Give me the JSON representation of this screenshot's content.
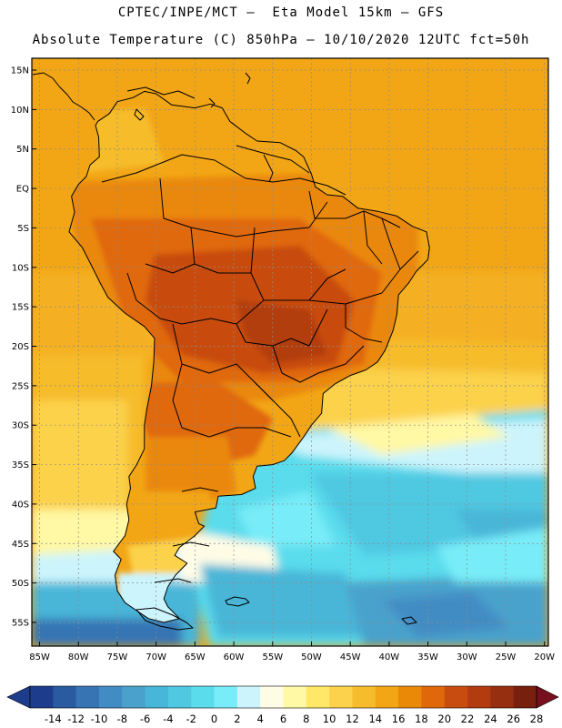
{
  "header": {
    "line1": "CPTEC/INPE/MCT –  Eta Model 15km – GFS",
    "line2": "Absolute Temperature (C) 850hPa – 10/10/2020 12UTC fct=50h"
  },
  "map": {
    "lon_range": [
      -86,
      -19.5
    ],
    "lat_range": [
      -58,
      16.5
    ],
    "lon_ticks": [
      {
        "value": -85,
        "label": "85W"
      },
      {
        "value": -80,
        "label": "80W"
      },
      {
        "value": -75,
        "label": "75W"
      },
      {
        "value": -70,
        "label": "70W"
      },
      {
        "value": -65,
        "label": "65W"
      },
      {
        "value": -60,
        "label": "60W"
      },
      {
        "value": -55,
        "label": "55W"
      },
      {
        "value": -50,
        "label": "50W"
      },
      {
        "value": -45,
        "label": "45W"
      },
      {
        "value": -40,
        "label": "40W"
      },
      {
        "value": -35,
        "label": "35W"
      },
      {
        "value": -30,
        "label": "30W"
      },
      {
        "value": -25,
        "label": "25W"
      },
      {
        "value": -20,
        "label": "20W"
      }
    ],
    "lat_ticks": [
      {
        "value": 15,
        "label": "15N"
      },
      {
        "value": 10,
        "label": "10N"
      },
      {
        "value": 5,
        "label": "5N"
      },
      {
        "value": 0,
        "label": "EQ"
      },
      {
        "value": -5,
        "label": "5S"
      },
      {
        "value": -10,
        "label": "10S"
      },
      {
        "value": -15,
        "label": "15S"
      },
      {
        "value": -20,
        "label": "20S"
      },
      {
        "value": -25,
        "label": "25S"
      },
      {
        "value": -30,
        "label": "30S"
      },
      {
        "value": -35,
        "label": "35S"
      },
      {
        "value": -40,
        "label": "40S"
      },
      {
        "value": -45,
        "label": "45S"
      },
      {
        "value": -50,
        "label": "50S"
      },
      {
        "value": -55,
        "label": "55S"
      }
    ]
  },
  "colorbar": {
    "labels": [
      "-14",
      "-12",
      "-10",
      "-8",
      "-6",
      "-4",
      "-2",
      "0",
      "2",
      "4",
      "6",
      "8",
      "10",
      "12",
      "14",
      "16",
      "18",
      "20",
      "22",
      "24",
      "26",
      "28"
    ],
    "colors": {
      "under": "#1e3c8c",
      "bins": [
        "#1e3c8c",
        "#2a5aa0",
        "#3674b4",
        "#428cc4",
        "#4aa2cc",
        "#48b6d8",
        "#50c8e2",
        "#5adcec",
        "#78ecf8",
        "#ccf4fc",
        "#fffce6",
        "#fff8a4",
        "#ffe868",
        "#fcd24c",
        "#f6bc2c",
        "#f2a616",
        "#ea8808",
        "#e0680a",
        "#c84c10",
        "#b23c10",
        "#962e10",
        "#78200e"
      ],
      "over": "#780f1e"
    }
  }
}
